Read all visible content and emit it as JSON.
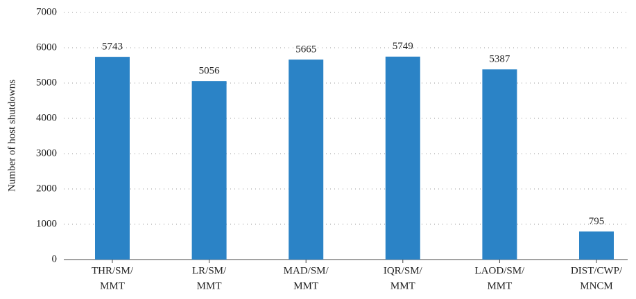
{
  "chart_data": {
    "type": "bar",
    "ylabel": "Number of host shutdowns",
    "categories": [
      [
        "THR/SM/",
        "MMT"
      ],
      [
        "LR/SM/",
        "MMT"
      ],
      [
        "MAD/SM/",
        "MMT"
      ],
      [
        "IQR/SM/",
        "MMT"
      ],
      [
        "LAOD/SM/",
        "MMT"
      ],
      [
        "DIST/CWP/",
        "MNCM"
      ]
    ],
    "values": [
      5743,
      5056,
      5665,
      5749,
      5387,
      795
    ],
    "color": "#2b83c6",
    "ylim": [
      0,
      7000
    ],
    "yticks": [
      0,
      1000,
      2000,
      3000,
      4000,
      5000,
      6000,
      7000
    ],
    "grid": true
  }
}
